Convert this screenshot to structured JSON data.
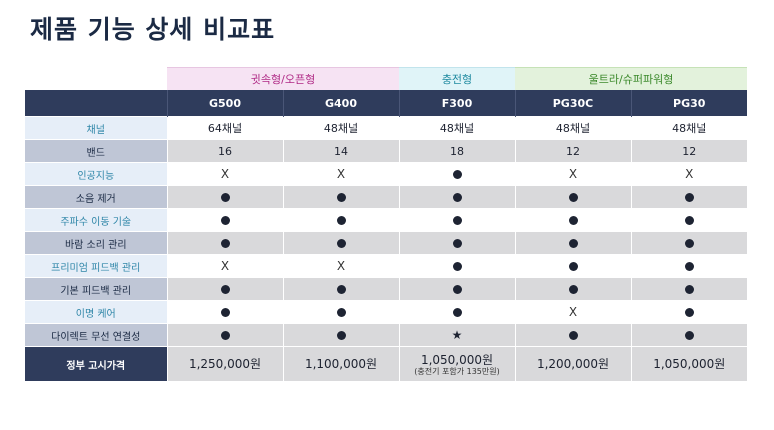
{
  "title": "제품 기능 상세 비교표",
  "groups": {
    "g1": "귓속형/오픈형",
    "g2": "충전형",
    "g3": "울트라/슈퍼파워형"
  },
  "models": [
    "G500",
    "G400",
    "F300",
    "PG30C",
    "PG30"
  ],
  "rows": [
    {
      "feature": "채널",
      "values": [
        "64채널",
        "48채널",
        "48채널",
        "48채널",
        "48채널"
      ]
    },
    {
      "feature": "밴드",
      "values": [
        "16",
        "14",
        "18",
        "12",
        "12"
      ]
    },
    {
      "feature": "인공지능",
      "values": [
        "x",
        "x",
        "dot",
        "x",
        "x"
      ]
    },
    {
      "feature": "소음 제거",
      "values": [
        "dot",
        "dot",
        "dot",
        "dot",
        "dot"
      ]
    },
    {
      "feature": "주파수 이동 기술",
      "values": [
        "dot",
        "dot",
        "dot",
        "dot",
        "dot"
      ]
    },
    {
      "feature": "바람 소리 관리",
      "values": [
        "dot",
        "dot",
        "dot",
        "dot",
        "dot"
      ]
    },
    {
      "feature": "프리미엄 피드백 관리",
      "values": [
        "x",
        "x",
        "dot",
        "dot",
        "dot"
      ]
    },
    {
      "feature": "기본 피드백 관리",
      "values": [
        "dot",
        "dot",
        "dot",
        "dot",
        "dot"
      ]
    },
    {
      "feature": "이명 케어",
      "values": [
        "dot",
        "dot",
        "dot",
        "x",
        "dot"
      ]
    },
    {
      "feature": "다이렉트 무선 연결성",
      "values": [
        "dot",
        "dot",
        "star",
        "dot",
        "dot"
      ]
    }
  ],
  "price": {
    "label": "정부 고시가격",
    "values": [
      "1,250,000원",
      "1,100,000원",
      "1,050,000원",
      "1,200,000원",
      "1,050,000원"
    ],
    "note_f300": "(충전기 포함가 135만원)"
  },
  "symbols": {
    "x": "X",
    "dot": "●",
    "star": "★"
  }
}
